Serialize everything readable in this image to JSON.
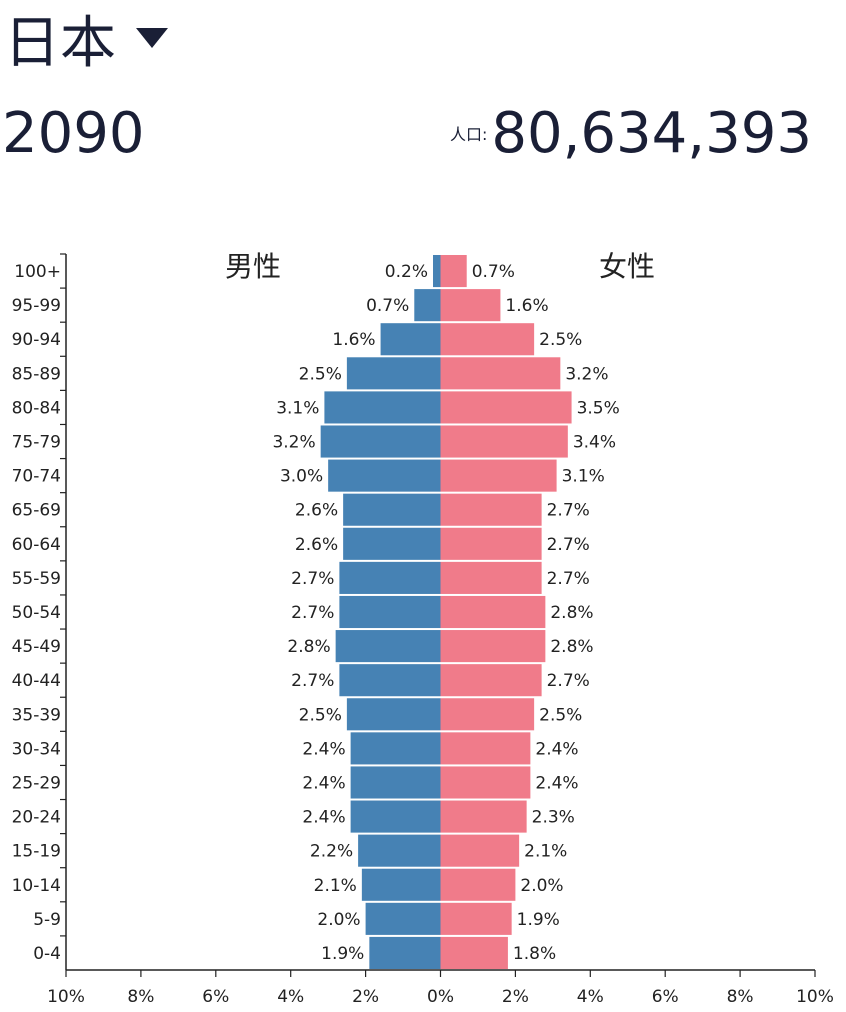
{
  "header": {
    "country": "日本",
    "year": "2090",
    "population_label": "人口:",
    "population": "80,634,393"
  },
  "colors": {
    "male": "#4682b4",
    "female": "#f07b8a",
    "text": "#1a1f36"
  },
  "icons": {
    "country_dropdown": "caret-down-icon"
  },
  "chart_data": {
    "type": "bar",
    "orientation": "horizontal",
    "layout": "population-pyramid",
    "categories": [
      "100+",
      "95-99",
      "90-94",
      "85-89",
      "80-84",
      "75-79",
      "70-74",
      "65-69",
      "60-64",
      "55-59",
      "50-54",
      "45-49",
      "40-44",
      "35-39",
      "30-34",
      "25-29",
      "20-24",
      "15-19",
      "10-14",
      "5-9",
      "0-4"
    ],
    "series": [
      {
        "name": "男性",
        "side": "left",
        "values": [
          0.2,
          0.7,
          1.6,
          2.5,
          3.1,
          3.2,
          3.0,
          2.6,
          2.6,
          2.7,
          2.7,
          2.8,
          2.7,
          2.5,
          2.4,
          2.4,
          2.4,
          2.2,
          2.1,
          2.0,
          1.9
        ],
        "labels": [
          "0.2%",
          "0.7%",
          "1.6%",
          "2.5%",
          "3.1%",
          "3.2%",
          "3.0%",
          "2.6%",
          "2.6%",
          "2.7%",
          "2.7%",
          "2.8%",
          "2.7%",
          "2.5%",
          "2.4%",
          "2.4%",
          "2.4%",
          "2.2%",
          "2.1%",
          "2.0%",
          "1.9%"
        ]
      },
      {
        "name": "女性",
        "side": "right",
        "values": [
          0.7,
          1.6,
          2.5,
          3.2,
          3.5,
          3.4,
          3.1,
          2.7,
          2.7,
          2.7,
          2.8,
          2.8,
          2.7,
          2.5,
          2.4,
          2.4,
          2.3,
          2.1,
          2.0,
          1.9,
          1.8
        ],
        "labels": [
          "0.7%",
          "1.6%",
          "2.5%",
          "3.2%",
          "3.5%",
          "3.4%",
          "3.1%",
          "2.7%",
          "2.7%",
          "2.7%",
          "2.8%",
          "2.8%",
          "2.7%",
          "2.5%",
          "2.4%",
          "2.4%",
          "2.3%",
          "2.1%",
          "2.0%",
          "1.9%",
          "1.8%"
        ]
      }
    ],
    "xlim": [
      -10,
      10
    ],
    "xticks": [
      -10,
      -8,
      -6,
      -4,
      -2,
      0,
      2,
      4,
      6,
      8,
      10
    ],
    "xtick_labels": [
      "10%",
      "8%",
      "6%",
      "4%",
      "2%",
      "0%",
      "2%",
      "4%",
      "6%",
      "8%",
      "10%"
    ],
    "grid": false
  }
}
